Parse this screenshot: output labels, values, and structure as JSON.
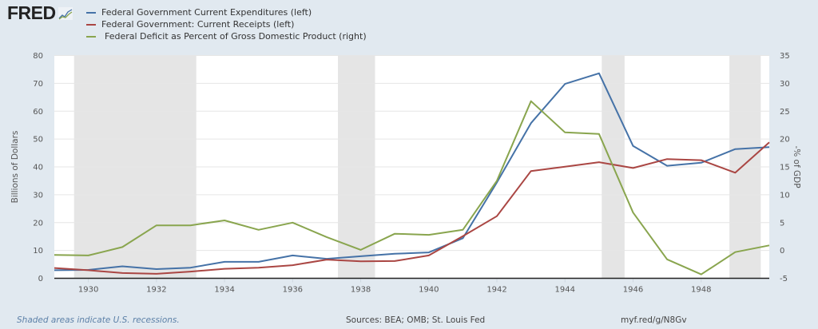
{
  "header": {
    "logo_text": "FRED",
    "logo_icon": "fred-chart-icon"
  },
  "legend": [
    {
      "label": "Federal Government Current Expenditures (left)",
      "color": "#4572a7"
    },
    {
      "label": "Federal Government: Current Receipts (left)",
      "color": "#aa4643"
    },
    {
      "label": "Federal Deficit as Percent of Gross Domestic Product (right)",
      "color": "#89a54e"
    }
  ],
  "footer": {
    "note": "Shaded areas indicate U.S. recessions.",
    "sources": "Sources: BEA; OMB; St. Louis Fed",
    "link": "myf.red/g/N8Gv"
  },
  "chart_data": {
    "type": "line",
    "title": "",
    "xlabel": "",
    "ylabel": "Billions of Dollars",
    "ylabel_right": "-% of GDP",
    "xlim": [
      1929,
      1950
    ],
    "ylim": [
      0,
      80
    ],
    "ylim_right": [
      -5,
      35
    ],
    "x_ticks": [
      1930,
      1932,
      1934,
      1936,
      1938,
      1940,
      1942,
      1944,
      1946,
      1948
    ],
    "y_ticks": [
      0,
      10,
      20,
      30,
      40,
      50,
      60,
      70,
      80
    ],
    "y_ticks_right": [
      -5,
      0,
      5,
      10,
      15,
      20,
      25,
      30,
      35
    ],
    "grid": true,
    "legend_position": "top-left",
    "x": [
      1929,
      1930,
      1931,
      1932,
      1933,
      1934,
      1935,
      1936,
      1937,
      1938,
      1939,
      1940,
      1941,
      1942,
      1943,
      1944,
      1945,
      1946,
      1947,
      1948,
      1949,
      1950
    ],
    "series": [
      {
        "name": "Federal Government Current Expenditures (left)",
        "axis": "left",
        "color": "#4572a7",
        "values": [
          2.9,
          3.0,
          4.3,
          3.3,
          3.8,
          5.9,
          5.9,
          8.2,
          7.0,
          7.9,
          8.8,
          9.3,
          14.4,
          34.4,
          55.7,
          69.8,
          73.6,
          47.5,
          40.4,
          41.5,
          46.4,
          47.1
        ]
      },
      {
        "name": "Federal Government: Current Receipts (left)",
        "axis": "left",
        "color": "#aa4643",
        "values": [
          3.7,
          2.9,
          1.9,
          1.6,
          2.4,
          3.4,
          3.8,
          4.7,
          6.7,
          6.1,
          6.2,
          8.2,
          15.1,
          22.3,
          38.5,
          40.1,
          41.7,
          39.6,
          42.8,
          42.4,
          37.9,
          48.8
        ]
      },
      {
        "name": "Federal Deficit as Percent of Gross Domestic Product (right)",
        "axis": "right",
        "color": "#89a54e",
        "values": [
          -0.8,
          -0.9,
          0.6,
          4.5,
          4.5,
          5.4,
          3.7,
          5.0,
          2.4,
          0.1,
          3.0,
          2.8,
          3.7,
          12.5,
          26.8,
          21.2,
          20.9,
          6.8,
          -1.6,
          -4.3,
          -0.3,
          0.9
        ]
      }
    ],
    "recessions": [
      {
        "start": 1929.58,
        "end": 1933.17
      },
      {
        "start": 1937.33,
        "end": 1938.42
      },
      {
        "start": 1945.08,
        "end": 1945.75
      },
      {
        "start": 1948.83,
        "end": 1949.75
      }
    ]
  }
}
